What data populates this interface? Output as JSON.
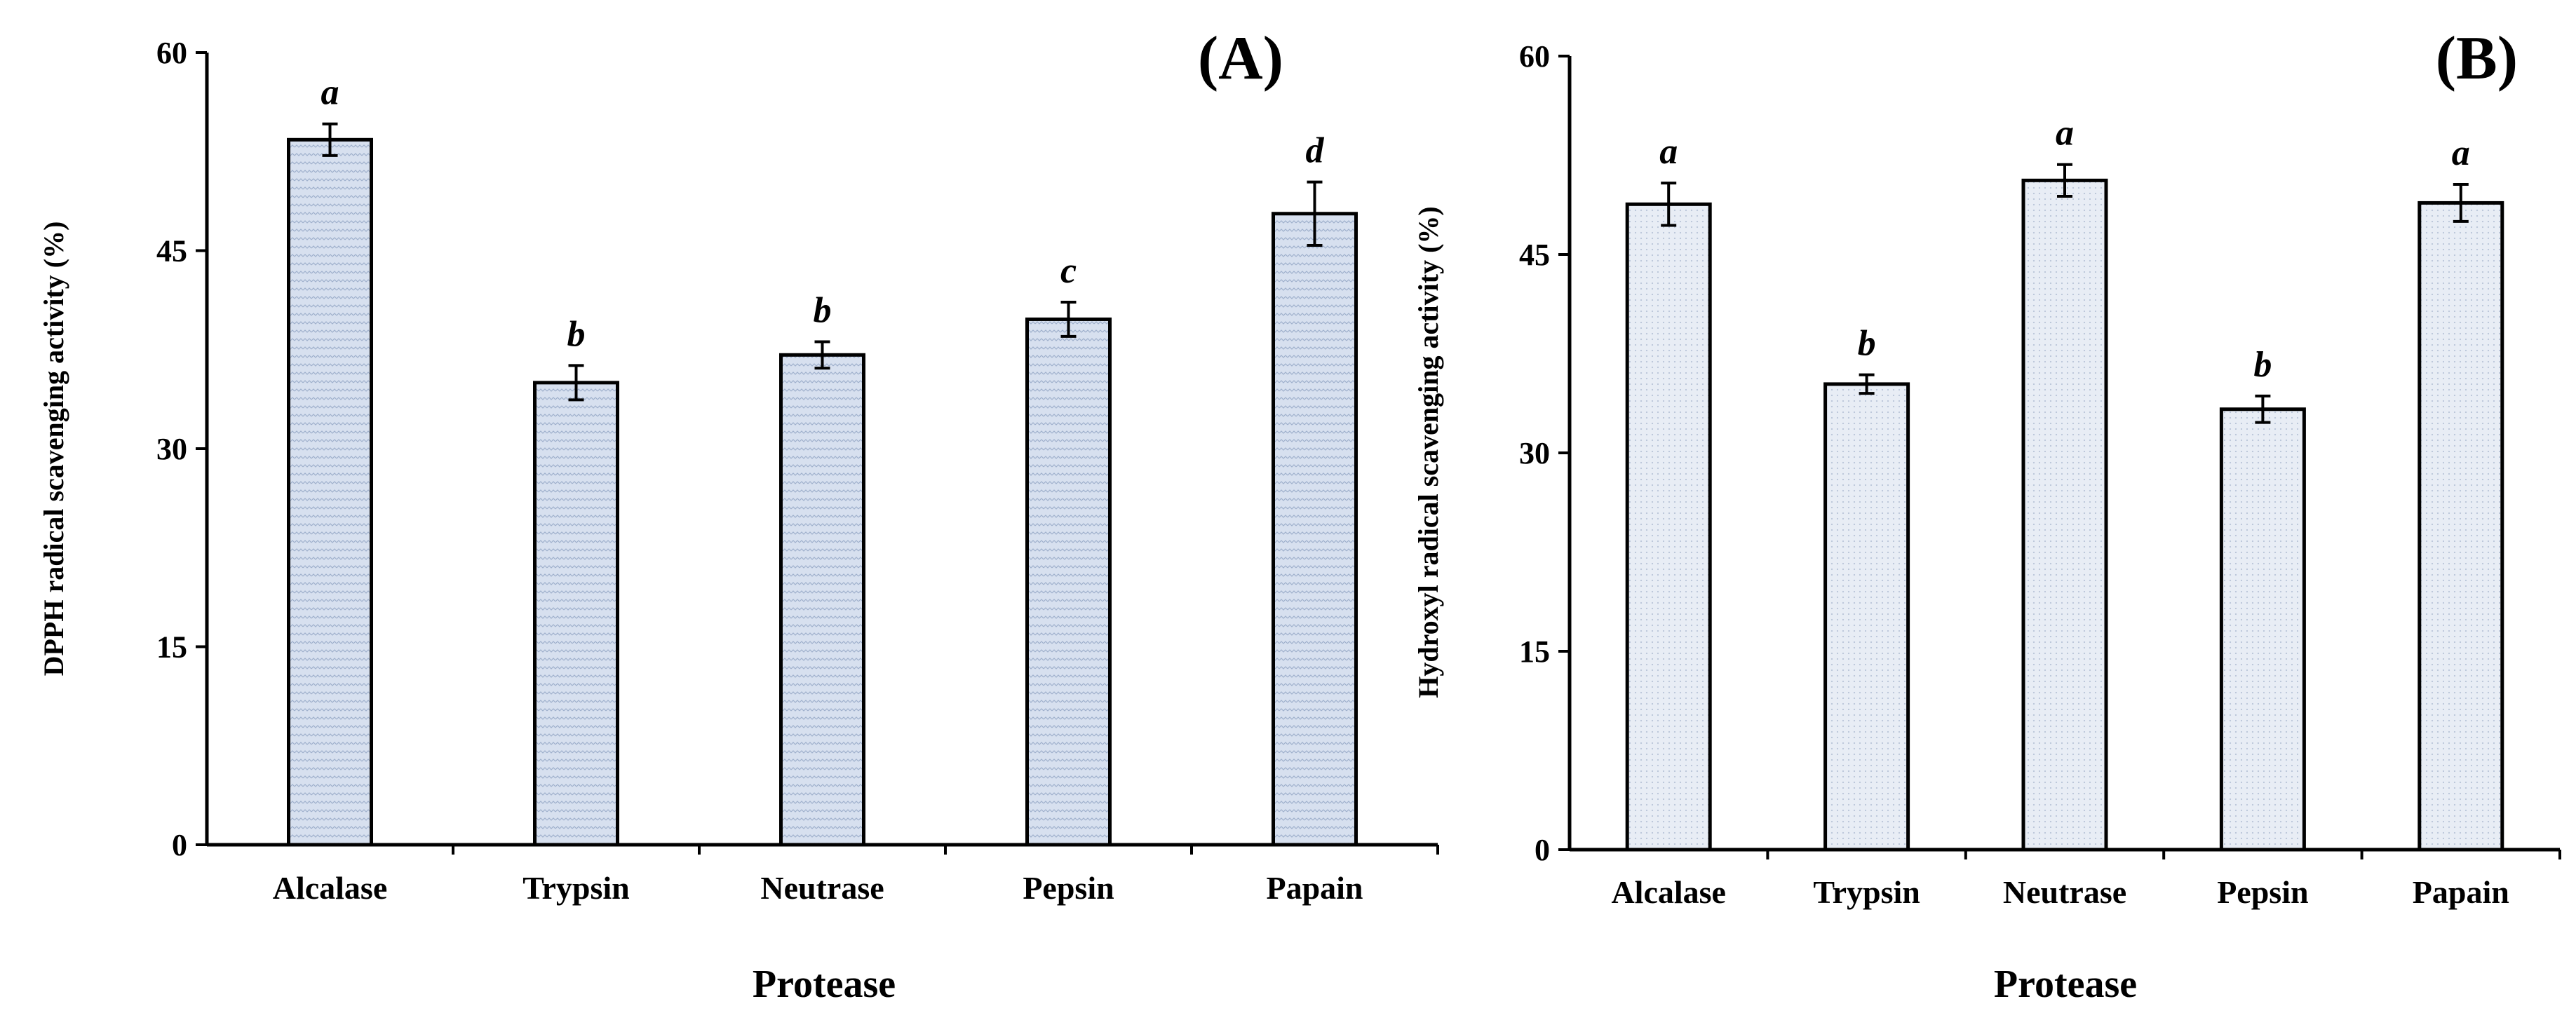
{
  "chart_data": [
    {
      "type": "bar",
      "panel_label": "(A)",
      "title": "",
      "xlabel": "Protease",
      "ylabel": "DPPH radical scavenging activity (%)",
      "ylim": [
        0,
        60
      ],
      "yticks": [
        "0",
        "15",
        "30",
        "45",
        "60"
      ],
      "grid": false,
      "categories": [
        "Alcalase",
        "Trypsin",
        "Neutrase",
        "Pepsin",
        "Papain"
      ],
      "values": [
        53.4,
        35.0,
        37.1,
        39.8,
        47.8
      ],
      "errors": [
        1.2,
        1.3,
        1.0,
        1.3,
        2.4
      ],
      "significance": [
        "a",
        "b",
        "b",
        "c",
        "d"
      ],
      "bar_color": "#d3dced",
      "edge_color": "#000000"
    },
    {
      "type": "bar",
      "panel_label": "(B)",
      "title": "",
      "xlabel": "Protease",
      "ylabel": "Hydroxyl radical scavenging activity (%)",
      "ylim": [
        0,
        60
      ],
      "yticks": [
        "0",
        "15",
        "30",
        "45",
        "60"
      ],
      "grid": false,
      "categories": [
        "Alcalase",
        "Trypsin",
        "Neutrase",
        "Pepsin",
        "Papain"
      ],
      "values": [
        48.8,
        35.2,
        50.6,
        33.3,
        48.9
      ],
      "errors": [
        1.6,
        0.7,
        1.2,
        1.0,
        1.4
      ],
      "significance": [
        "a",
        "b",
        "a",
        "b",
        "a"
      ],
      "bar_color": "#e6ebf3",
      "edge_color": "#000000"
    }
  ]
}
